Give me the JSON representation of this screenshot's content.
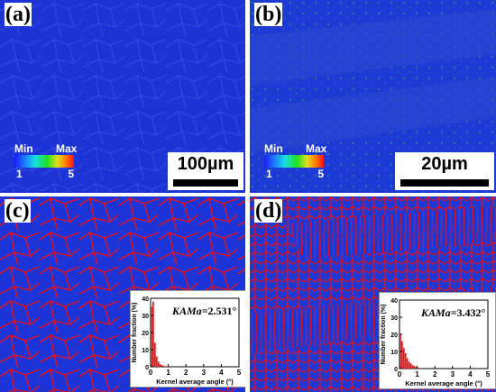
{
  "panels": {
    "a": {
      "label": "(a)",
      "scale_bar": "100µm",
      "legend": {
        "min_label": "Min",
        "max_label": "Max",
        "min_value": "1",
        "max_value": "5"
      }
    },
    "b": {
      "label": "(b)",
      "scale_bar": "20µm",
      "legend": {
        "min_label": "Min",
        "max_label": "Max",
        "min_value": "1",
        "max_value": "5"
      }
    },
    "c": {
      "label": "(c)",
      "histogram": {
        "kama_label": "KAMa",
        "kama_value": "=2.531°",
        "ylabel": "Number fraction (%)",
        "xlabel": "Kernel average angle (°)",
        "yticks": [
          "0",
          "10",
          "20",
          "30",
          "40"
        ],
        "xticks": [
          "0",
          "1",
          "2",
          "3",
          "4",
          "5"
        ]
      }
    },
    "d": {
      "label": "(d)",
      "histogram": {
        "kama_label": "KAMa",
        "kama_value": "=3.432°",
        "ylabel": "Number fraction (%)",
        "xlabel": "Kernel average angle (°)",
        "yticks": [
          "0",
          "10",
          "20",
          "30",
          "40"
        ],
        "xticks": [
          "0",
          "1",
          "2",
          "3",
          "4",
          "5"
        ]
      }
    }
  },
  "colors": {
    "map_blue": "#1a2fd8",
    "boundary_red": "#e8121a",
    "bar_red": "#e01818"
  },
  "chart_data": [
    {
      "type": "bar",
      "ylabel": "Number fraction (%)",
      "xlabel": "Kernel average angle (°)",
      "xlim": [
        0,
        5
      ],
      "ylim": [
        0,
        40
      ],
      "x": [
        0.1,
        0.2,
        0.3,
        0.4,
        0.5,
        0.6,
        0.7,
        0.8,
        0.9,
        1.0
      ],
      "values": [
        35,
        38,
        14,
        6,
        3,
        1.5,
        1,
        0.5,
        0.3,
        0.2
      ]
    },
    {
      "type": "bar",
      "ylabel": "Number fraction (%)",
      "xlabel": "Kernel average angle (°)",
      "xlim": [
        0,
        5
      ],
      "ylim": [
        0,
        40
      ],
      "x": [
        0.1,
        0.2,
        0.3,
        0.4,
        0.5,
        0.6,
        0.7,
        0.8,
        0.9,
        1.0,
        1.1,
        1.2
      ],
      "values": [
        20,
        16,
        12,
        9,
        6,
        4,
        3,
        2,
        1.5,
        1,
        0.6,
        0.3
      ]
    }
  ]
}
